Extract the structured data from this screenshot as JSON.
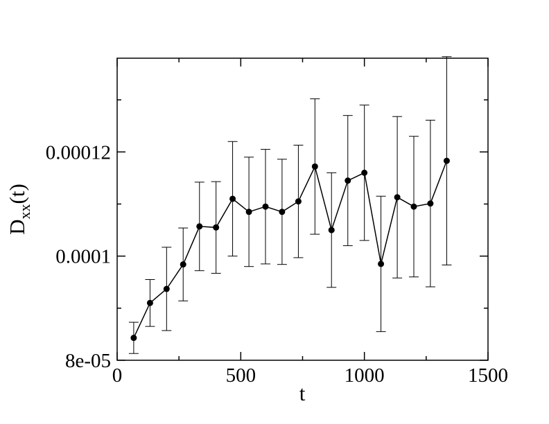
{
  "chart_data": {
    "type": "scatter",
    "title": "",
    "xlabel": "t",
    "ylabel": {
      "main": "D",
      "sub": "xx",
      "suffix": "(t)"
    },
    "xlim": [
      0,
      1500
    ],
    "ylim": [
      8e-05,
      0.000138
    ],
    "x_ticks": [
      {
        "value": 0,
        "label": "0"
      },
      {
        "value": 500,
        "label": "500"
      },
      {
        "value": 1000,
        "label": "1000"
      },
      {
        "value": 1500,
        "label": "1500"
      }
    ],
    "x_minor_ticks": [
      250,
      750,
      1250
    ],
    "y_ticks": [
      {
        "value": 8e-05,
        "label": "8e-05"
      },
      {
        "value": 0.0001,
        "label": "0.0001"
      },
      {
        "value": 0.00012,
        "label": "0.00012"
      }
    ],
    "y_minor_ticks": [
      9e-05,
      0.00011,
      0.00013
    ],
    "grid": false,
    "series": [
      {
        "line": true,
        "marker": "circle",
        "color": "#000000",
        "points": [
          {
            "x": 67,
            "y": 8.43e-05,
            "err": 3e-06
          },
          {
            "x": 133,
            "y": 9.1e-05,
            "err": 4.5e-06
          },
          {
            "x": 200,
            "y": 9.37e-05,
            "err": 8e-06
          },
          {
            "x": 267,
            "y": 9.84e-05,
            "err": 7e-06
          },
          {
            "x": 333,
            "y": 0.0001057,
            "err": 8.5e-06
          },
          {
            "x": 400,
            "y": 0.0001055,
            "err": 8.8e-06
          },
          {
            "x": 467,
            "y": 0.000111,
            "err": 1.1e-05
          },
          {
            "x": 533,
            "y": 0.0001085,
            "err": 1.05e-05
          },
          {
            "x": 600,
            "y": 0.0001095,
            "err": 1.1e-05
          },
          {
            "x": 667,
            "y": 0.0001085,
            "err": 1.01e-05
          },
          {
            "x": 733,
            "y": 0.0001105,
            "err": 1.08e-05
          },
          {
            "x": 800,
            "y": 0.0001172,
            "err": 1.3e-05
          },
          {
            "x": 867,
            "y": 0.000105,
            "err": 1.1e-05
          },
          {
            "x": 933,
            "y": 0.0001145,
            "err": 1.25e-05
          },
          {
            "x": 1000,
            "y": 0.000116,
            "err": 1.3e-05
          },
          {
            "x": 1067,
            "y": 9.85e-05,
            "err": 1.3e-05
          },
          {
            "x": 1133,
            "y": 0.0001113,
            "err": 1.55e-05
          },
          {
            "x": 1200,
            "y": 0.0001095,
            "err": 1.35e-05
          },
          {
            "x": 1267,
            "y": 0.0001101,
            "err": 1.6e-05
          },
          {
            "x": 1333,
            "y": 0.0001183,
            "err": 2e-05
          }
        ]
      }
    ]
  }
}
